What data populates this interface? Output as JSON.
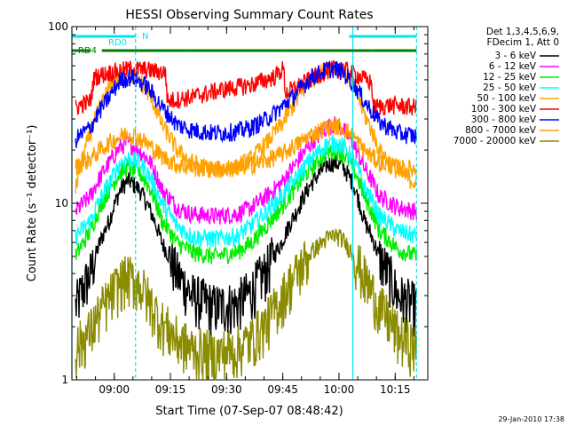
{
  "chart_data": {
    "type": "line",
    "title": "HESSI Observing Summary Count Rates",
    "xlabel": "Start Time (07-Sep-07 08:48:42)",
    "ylabel": "Count Rate (s⁻¹ detector⁻¹)",
    "yscale": "log",
    "ylim": [
      1,
      100
    ],
    "xlim_minutes": [
      0,
      95
    ],
    "x_ticks": [
      {
        "label": "09:00",
        "minute": 11.3
      },
      {
        "label": "09:15",
        "minute": 26.3
      },
      {
        "label": "09:30",
        "minute": 41.3
      },
      {
        "label": "09:45",
        "minute": 56.3
      },
      {
        "label": "10:00",
        "minute": 71.3
      },
      {
        "label": "10:15",
        "minute": 86.3
      }
    ],
    "y_ticks": [
      {
        "label": "1",
        "value": 1
      },
      {
        "label": "10",
        "value": 10
      },
      {
        "label": "100",
        "value": 100
      }
    ],
    "legend_header": [
      "Det 1,3,4,5,6,9,",
      "FDecim 1, Att 0"
    ],
    "legend_placement": "right",
    "timestamp": "29-Jan-2010 17:38",
    "flags": [
      {
        "name": "N",
        "color": "#00e5ee",
        "segments": [
          [
            0,
            17
          ],
          [
            74,
            92
          ]
        ]
      },
      {
        "name": "RD0",
        "color": "#00e5ee",
        "segments": []
      },
      {
        "name": "RD4",
        "color": "#008000",
        "segments": [
          [
            0,
            5
          ],
          [
            8,
            30
          ],
          [
            30,
            56
          ],
          [
            56,
            80
          ],
          [
            80,
            92
          ]
        ]
      }
    ],
    "vertical_markers": [
      {
        "minute": 0,
        "color": "#00e5ee",
        "style": "solid"
      },
      {
        "minute": 17,
        "color": "#00e5ee",
        "style": "dashed"
      },
      {
        "minute": 75,
        "color": "#00e5ee",
        "style": "solid"
      },
      {
        "minute": 92,
        "color": "#00e5ee",
        "style": "dashed"
      }
    ],
    "series": [
      {
        "name": "3 - 6 keV",
        "color": "#000000",
        "x": [
          1,
          5,
          10,
          13,
          15,
          18,
          21,
          24,
          28,
          32,
          38,
          44,
          48,
          52,
          56,
          60,
          64,
          68,
          70,
          72,
          75,
          78,
          82,
          87,
          92
        ],
        "y": [
          2.6,
          4.0,
          8.0,
          12,
          13.5,
          12,
          9,
          6,
          4,
          3,
          2.6,
          2.7,
          3.2,
          4.2,
          6,
          9,
          13,
          16.5,
          17,
          16.5,
          13,
          8,
          5,
          3,
          2.6
        ]
      },
      {
        "name": "6 - 12 keV",
        "color": "#ff00ff",
        "x": [
          1,
          5,
          10,
          13,
          15,
          18,
          21,
          24,
          28,
          32,
          38,
          44,
          48,
          52,
          56,
          60,
          64,
          68,
          70,
          72,
          75,
          78,
          82,
          87,
          92
        ],
        "y": [
          9,
          11,
          17,
          21,
          22,
          20,
          17,
          12,
          9.5,
          8.7,
          8.5,
          8.7,
          9.5,
          11,
          13,
          17,
          22,
          27,
          28,
          27,
          22,
          16,
          11,
          9.5,
          9
        ]
      },
      {
        "name": "12 - 25 keV",
        "color": "#00ee00",
        "x": [
          1,
          5,
          10,
          13,
          15,
          18,
          21,
          24,
          28,
          32,
          38,
          44,
          48,
          52,
          56,
          60,
          64,
          68,
          70,
          72,
          75,
          78,
          82,
          87,
          92
        ],
        "y": [
          5,
          7,
          12,
          15,
          16,
          15,
          12,
          8,
          6,
          5.3,
          5,
          5.3,
          6,
          7.5,
          9.5,
          12.5,
          16,
          19.5,
          20,
          19.5,
          16,
          11,
          7,
          5.5,
          5
        ]
      },
      {
        "name": "25 - 50 keV",
        "color": "#00ffff",
        "x": [
          1,
          5,
          10,
          13,
          15,
          18,
          21,
          24,
          28,
          32,
          38,
          44,
          48,
          52,
          56,
          60,
          64,
          68,
          70,
          72,
          75,
          78,
          82,
          87,
          92
        ],
        "y": [
          6.5,
          8,
          13,
          17,
          18,
          17,
          14,
          10,
          7.5,
          6.5,
          6.3,
          6.5,
          7.5,
          9,
          11,
          14,
          18,
          21.5,
          22,
          21.5,
          18,
          12.5,
          8.5,
          7,
          6.5
        ]
      },
      {
        "name": "50 - 100 keV",
        "color": "#ffa500",
        "x": [
          1,
          5,
          10,
          13,
          15,
          18,
          21,
          24,
          28,
          32,
          38,
          44,
          48,
          52,
          56,
          60,
          64,
          68,
          70,
          72,
          75,
          78,
          82,
          87,
          92
        ],
        "y": [
          12,
          25,
          45,
          54,
          55,
          50,
          40,
          28,
          20,
          17,
          15.5,
          16,
          18,
          22,
          28,
          38,
          50,
          58,
          60,
          58,
          47,
          32,
          20,
          15,
          13
        ]
      },
      {
        "name": "100 - 300 keV",
        "color": "#ff0000",
        "x": [
          1,
          5,
          6,
          10,
          16,
          20,
          25,
          25.5,
          32,
          40,
          48,
          54,
          56.5,
          57,
          62,
          66,
          70,
          74,
          77,
          80,
          80.5,
          85,
          92
        ],
        "y": [
          35,
          38,
          52,
          55,
          58,
          57,
          55,
          38,
          40,
          44,
          47,
          52,
          58,
          42,
          48,
          54,
          58,
          56,
          52,
          48,
          35,
          36,
          35
        ]
      },
      {
        "name": "300 - 800 keV",
        "color": "#0000ff",
        "x": [
          1,
          5,
          10,
          13,
          16,
          20,
          24,
          28,
          32,
          38,
          44,
          48,
          52,
          56,
          60,
          64,
          68,
          70,
          72,
          75,
          78,
          82,
          87,
          92
        ],
        "y": [
          23,
          27,
          40,
          50,
          52,
          46,
          35,
          28,
          26,
          25,
          25.5,
          27,
          30,
          35,
          42,
          52,
          57,
          58,
          56,
          48,
          38,
          29,
          25,
          24
        ]
      },
      {
        "name": "800 - 7000 keV",
        "color": "#ffa000",
        "x": [
          1,
          5,
          10,
          13,
          15,
          18,
          21,
          24,
          28,
          32,
          38,
          44,
          48,
          52,
          56,
          60,
          64,
          68,
          70,
          72,
          75,
          78,
          82,
          87,
          92
        ],
        "y": [
          16,
          18,
          22,
          24,
          25,
          23.5,
          21,
          18.5,
          16.5,
          16,
          15.5,
          16,
          16.5,
          17.5,
          19,
          21.5,
          24.5,
          27,
          27.5,
          27,
          24,
          20,
          17,
          16,
          15.5
        ]
      },
      {
        "name": "7000 - 20000 keV",
        "color": "#8b8b00",
        "x": [
          1,
          5,
          10,
          13,
          15,
          18,
          21,
          24,
          28,
          32,
          38,
          44,
          48,
          52,
          56,
          60,
          64,
          68,
          70,
          72,
          75,
          78,
          82,
          87,
          92
        ],
        "y": [
          1.5,
          1.9,
          2.9,
          3.6,
          3.8,
          3.5,
          2.7,
          2.1,
          1.7,
          1.5,
          1.4,
          1.5,
          1.7,
          2.1,
          2.9,
          4.0,
          5.3,
          6.3,
          6.6,
          6.3,
          5.2,
          3.8,
          2.6,
          1.8,
          1.5
        ]
      }
    ]
  }
}
